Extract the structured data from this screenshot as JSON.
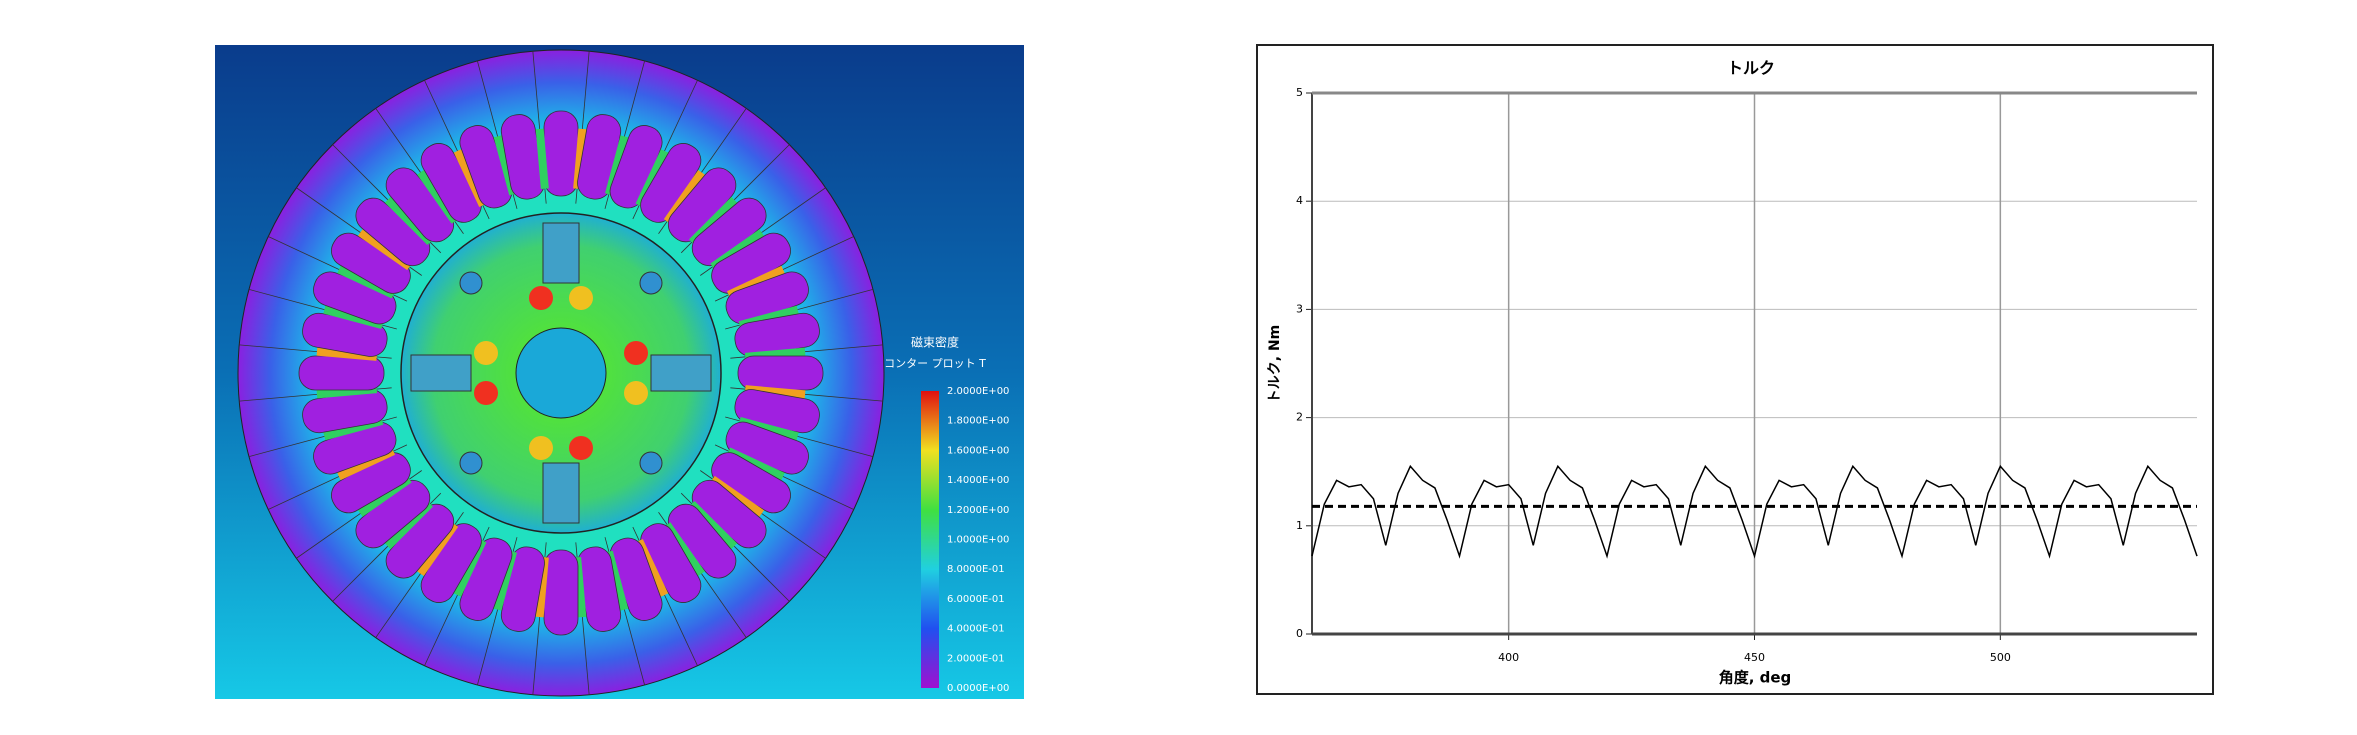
{
  "simulation": {
    "legend_title": "磁束密度",
    "legend_subtitle": "コンター プロット T",
    "legend_labels": [
      "2.0000E+00",
      "1.8000E+00",
      "1.6000E+00",
      "1.4000E+00",
      "1.2000E+00",
      "1.0000E+00",
      "8.0000E-01",
      "6.0000E-01",
      "4.0000E-01",
      "2.0000E-01",
      "0.0000E+00"
    ]
  },
  "chart_data": {
    "type": "line",
    "title": "トルク",
    "x_label": "角度, deg",
    "y_label": "トルク, Nm",
    "x": [
      360,
      362.5,
      365,
      367.5,
      370,
      372.5,
      375,
      377.5,
      380,
      382.5,
      385,
      387.5,
      390,
      392.5,
      395,
      397.5,
      400,
      402.5,
      405,
      407.5,
      410,
      412.5,
      415,
      417.5,
      420,
      422.5,
      425,
      427.5,
      430,
      432.5,
      435,
      437.5,
      440,
      442.5,
      445,
      447.5,
      450,
      452.5,
      455,
      457.5,
      460,
      462.5,
      465,
      467.5,
      470,
      472.5,
      475,
      477.5,
      480,
      482.5,
      485,
      487.5,
      490,
      492.5,
      495,
      497.5,
      500,
      502.5,
      505,
      507.5,
      510,
      512.5,
      515,
      517.5,
      520,
      522.5,
      525,
      527.5,
      530,
      532.5,
      535,
      537.5,
      540
    ],
    "series": [
      {
        "color": "#000000",
        "values": [
          0.72,
          1.2,
          1.42,
          1.36,
          1.38,
          1.25,
          0.82,
          1.3,
          1.55,
          1.42,
          1.35,
          1.05,
          0.72,
          1.2,
          1.42,
          1.36,
          1.38,
          1.25,
          0.82,
          1.3,
          1.55,
          1.42,
          1.35,
          1.05,
          0.72,
          1.2,
          1.42,
          1.36,
          1.38,
          1.25,
          0.82,
          1.3,
          1.55,
          1.42,
          1.35,
          1.05,
          0.72,
          1.2,
          1.42,
          1.36,
          1.38,
          1.25,
          0.82,
          1.3,
          1.55,
          1.42,
          1.35,
          1.05,
          0.72,
          1.2,
          1.42,
          1.36,
          1.38,
          1.25,
          0.82,
          1.3,
          1.55,
          1.42,
          1.35,
          1.05,
          0.72,
          1.2,
          1.42,
          1.36,
          1.38,
          1.25,
          0.82,
          1.3,
          1.55,
          1.42,
          1.35,
          1.05,
          0.72
        ]
      }
    ],
    "reference_line": 1.18,
    "xlim": [
      360,
      540
    ],
    "xticks": [
      400,
      450,
      500
    ],
    "ylim": [
      0,
      5
    ],
    "yticks": [
      0,
      1,
      2,
      3,
      4,
      5
    ],
    "grid": true
  }
}
